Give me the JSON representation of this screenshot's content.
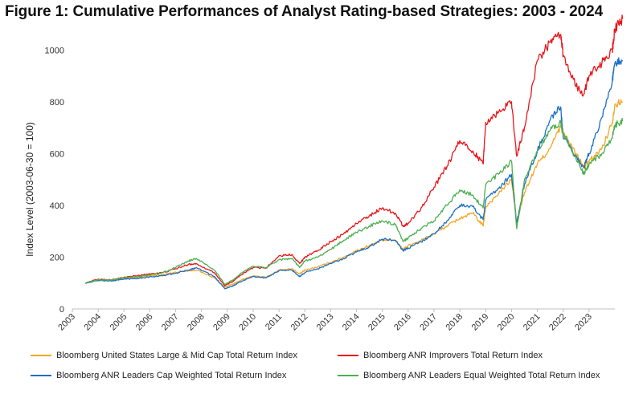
{
  "title": "Figure 1: Cumulative Performances of Analyst Rating-based Strategies: 2003 - 2024",
  "chart_data": {
    "type": "line",
    "ylabel": "Index Level (2003-06-30 = 100)",
    "ylim": [
      0,
      1100
    ],
    "yticks": [
      0,
      200,
      400,
      600,
      800,
      1000
    ],
    "xlim": [
      2003.0,
      2024.0
    ],
    "xticks": [
      "2003",
      "2004",
      "2005",
      "2006",
      "2007",
      "2008",
      "2009",
      "2010",
      "2011",
      "2012",
      "2013",
      "2014",
      "2015",
      "2016",
      "2017",
      "2018",
      "2019",
      "2020",
      "2021",
      "2022",
      "2023"
    ],
    "grid": false,
    "legend_position": "bottom",
    "x": [
      2003.5,
      2004.0,
      2004.5,
      2005.0,
      2005.5,
      2006.0,
      2006.5,
      2007.0,
      2007.5,
      2007.8,
      2008.5,
      2008.9,
      2009.2,
      2009.5,
      2010.0,
      2010.5,
      2011.0,
      2011.5,
      2011.8,
      2012.0,
      2012.5,
      2013.0,
      2013.5,
      2014.0,
      2014.5,
      2015.0,
      2015.5,
      2015.8,
      2016.0,
      2016.5,
      2017.0,
      2017.5,
      2018.0,
      2018.5,
      2018.9,
      2019.0,
      2019.5,
      2020.0,
      2020.2,
      2020.5,
      2021.0,
      2021.5,
      2021.9,
      2022.0,
      2022.5,
      2022.8,
      2023.0,
      2023.5,
      2023.9,
      2024.0,
      2024.3
    ],
    "series": [
      {
        "name": "Bloomberg United States Large & Mid Cap Total Return Index",
        "color": "#f5a623",
        "values": [
          100,
          112,
          110,
          118,
          122,
          128,
          132,
          142,
          148,
          150,
          120,
          85,
          95,
          110,
          128,
          122,
          150,
          155,
          135,
          150,
          162,
          180,
          200,
          225,
          245,
          265,
          265,
          230,
          245,
          265,
          290,
          320,
          350,
          370,
          320,
          395,
          445,
          500,
          335,
          450,
          560,
          620,
          705,
          680,
          600,
          545,
          570,
          620,
          720,
          790,
          800
        ]
      },
      {
        "name": "Bloomberg ANR Improvers Total Return Index",
        "color": "#e8161b",
        "values": [
          100,
          115,
          112,
          122,
          128,
          136,
          140,
          155,
          172,
          175,
          140,
          90,
          105,
          130,
          160,
          158,
          205,
          210,
          175,
          200,
          225,
          260,
          290,
          330,
          360,
          390,
          370,
          320,
          330,
          390,
          470,
          550,
          650,
          610,
          560,
          720,
          760,
          800,
          590,
          700,
          960,
          1030,
          1060,
          980,
          860,
          830,
          900,
          950,
          1000,
          1080,
          1120
        ]
      },
      {
        "name": "Bloomberg ANR Leaders Cap Weighted Total Return Index",
        "color": "#1b6fc6",
        "values": [
          100,
          110,
          108,
          115,
          118,
          124,
          128,
          138,
          150,
          160,
          125,
          78,
          88,
          105,
          125,
          120,
          148,
          150,
          125,
          140,
          155,
          175,
          195,
          220,
          240,
          270,
          265,
          225,
          235,
          260,
          290,
          340,
          400,
          395,
          345,
          420,
          465,
          520,
          330,
          480,
          610,
          730,
          780,
          660,
          590,
          545,
          600,
          740,
          880,
          950,
          960
        ]
      },
      {
        "name": "Bloomberg ANR Leaders Equal Weighted Total Return Index",
        "color": "#4caf50",
        "values": [
          100,
          112,
          112,
          120,
          124,
          132,
          140,
          160,
          185,
          195,
          150,
          95,
          110,
          135,
          165,
          160,
          190,
          195,
          160,
          185,
          200,
          230,
          265,
          295,
          320,
          340,
          325,
          260,
          275,
          310,
          340,
          400,
          460,
          440,
          390,
          480,
          520,
          570,
          310,
          500,
          610,
          690,
          720,
          680,
          580,
          520,
          560,
          600,
          660,
          710,
          725
        ]
      }
    ]
  }
}
